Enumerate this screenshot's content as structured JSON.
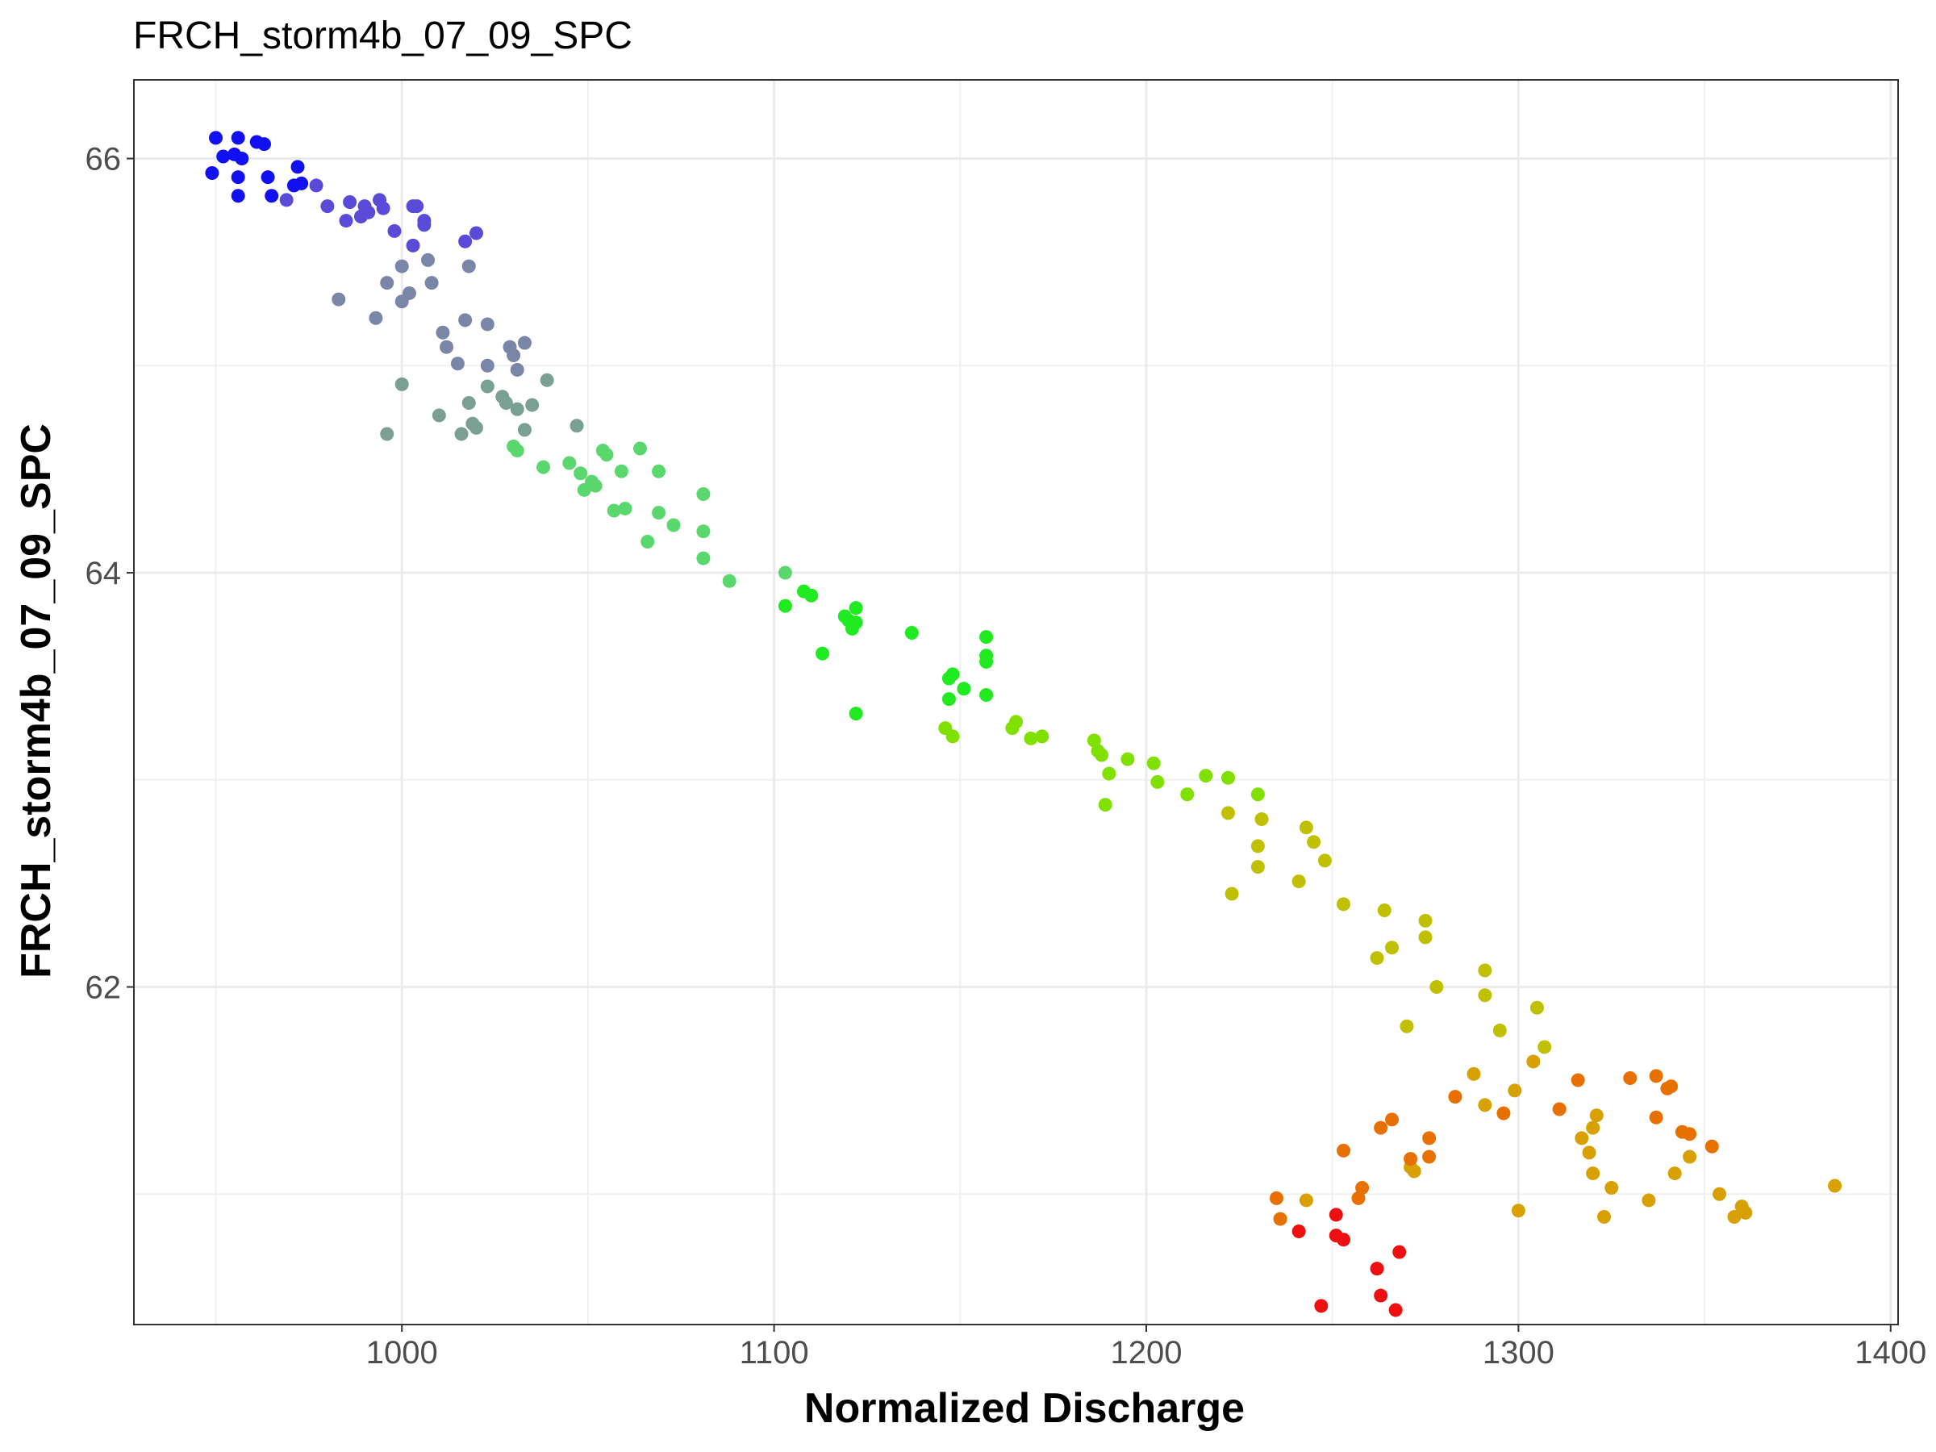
{
  "chart_data": {
    "type": "scatter",
    "title": "FRCH_storm4b_07_09_SPC",
    "xlabel": "Normalized Discharge",
    "ylabel": "FRCH_storm4b_07_09_SPC",
    "xlim": [
      928,
      1402
    ],
    "ylim": [
      60.37,
      66.38
    ],
    "x_ticks": [
      1000,
      1100,
      1200,
      1300,
      1400
    ],
    "y_ticks": [
      62,
      64,
      66
    ],
    "x_minor_gridlines": [
      950,
      1050,
      1150,
      1250,
      1350
    ],
    "y_minor_gridlines": [
      61,
      63,
      65
    ],
    "grid": true,
    "legend": "none",
    "color_note": "points colored along a gradient in time order: blue, grey, green, yellow, orange, red",
    "colors": {
      "blue": "#1010f0",
      "purple": "#5a4ad8",
      "slate": "#7a86a8",
      "grey_green": "#7aa094",
      "green_light": "#5ad86e",
      "green": "#20ea20",
      "lime": "#80e000",
      "yellow": "#c0c000",
      "gold": "#d8a000",
      "orange": "#e87000",
      "red": "#ee1010"
    },
    "points": [
      {
        "x": 950,
        "y": 66.1,
        "c": "blue"
      },
      {
        "x": 956,
        "y": 66.1,
        "c": "blue"
      },
      {
        "x": 961,
        "y": 66.08,
        "c": "blue"
      },
      {
        "x": 963,
        "y": 66.07,
        "c": "blue"
      },
      {
        "x": 952,
        "y": 66.01,
        "c": "blue"
      },
      {
        "x": 957,
        "y": 66.0,
        "c": "blue"
      },
      {
        "x": 955,
        "y": 66.02,
        "c": "blue"
      },
      {
        "x": 949,
        "y": 65.93,
        "c": "blue"
      },
      {
        "x": 956,
        "y": 65.91,
        "c": "blue"
      },
      {
        "x": 964,
        "y": 65.91,
        "c": "blue"
      },
      {
        "x": 972,
        "y": 65.96,
        "c": "blue"
      },
      {
        "x": 956,
        "y": 65.82,
        "c": "blue"
      },
      {
        "x": 965,
        "y": 65.82,
        "c": "blue"
      },
      {
        "x": 971,
        "y": 65.87,
        "c": "blue"
      },
      {
        "x": 973,
        "y": 65.88,
        "c": "blue"
      },
      {
        "x": 977,
        "y": 65.87,
        "c": "purple"
      },
      {
        "x": 969,
        "y": 65.8,
        "c": "purple"
      },
      {
        "x": 980,
        "y": 65.77,
        "c": "purple"
      },
      {
        "x": 986,
        "y": 65.79,
        "c": "purple"
      },
      {
        "x": 990,
        "y": 65.77,
        "c": "purple"
      },
      {
        "x": 994,
        "y": 65.8,
        "c": "purple"
      },
      {
        "x": 995,
        "y": 65.76,
        "c": "purple"
      },
      {
        "x": 985,
        "y": 65.7,
        "c": "purple"
      },
      {
        "x": 989,
        "y": 65.72,
        "c": "purple"
      },
      {
        "x": 991,
        "y": 65.74,
        "c": "purple"
      },
      {
        "x": 1003,
        "y": 65.77,
        "c": "purple"
      },
      {
        "x": 1004,
        "y": 65.77,
        "c": "purple"
      },
      {
        "x": 1006,
        "y": 65.7,
        "c": "purple"
      },
      {
        "x": 1006,
        "y": 65.68,
        "c": "purple"
      },
      {
        "x": 998,
        "y": 65.65,
        "c": "purple"
      },
      {
        "x": 1020,
        "y": 65.64,
        "c": "purple"
      },
      {
        "x": 1017,
        "y": 65.6,
        "c": "purple"
      },
      {
        "x": 1003,
        "y": 65.58,
        "c": "purple"
      },
      {
        "x": 1007,
        "y": 65.51,
        "c": "slate"
      },
      {
        "x": 1018,
        "y": 65.48,
        "c": "slate"
      },
      {
        "x": 1000,
        "y": 65.48,
        "c": "slate"
      },
      {
        "x": 996,
        "y": 65.4,
        "c": "slate"
      },
      {
        "x": 1008,
        "y": 65.4,
        "c": "slate"
      },
      {
        "x": 983,
        "y": 65.32,
        "c": "slate"
      },
      {
        "x": 1002,
        "y": 65.35,
        "c": "slate"
      },
      {
        "x": 1000,
        "y": 65.31,
        "c": "slate"
      },
      {
        "x": 993,
        "y": 65.23,
        "c": "slate"
      },
      {
        "x": 1017,
        "y": 65.22,
        "c": "slate"
      },
      {
        "x": 1023,
        "y": 65.2,
        "c": "slate"
      },
      {
        "x": 1011,
        "y": 65.16,
        "c": "slate"
      },
      {
        "x": 1029,
        "y": 65.09,
        "c": "slate"
      },
      {
        "x": 1033,
        "y": 65.11,
        "c": "slate"
      },
      {
        "x": 1012,
        "y": 65.09,
        "c": "slate"
      },
      {
        "x": 1030,
        "y": 65.05,
        "c": "slate"
      },
      {
        "x": 1015,
        "y": 65.01,
        "c": "slate"
      },
      {
        "x": 1023,
        "y": 65.0,
        "c": "slate"
      },
      {
        "x": 1031,
        "y": 64.98,
        "c": "slate"
      },
      {
        "x": 1000,
        "y": 64.91,
        "c": "grey_green"
      },
      {
        "x": 1023,
        "y": 64.9,
        "c": "grey_green"
      },
      {
        "x": 1039,
        "y": 64.93,
        "c": "grey_green"
      },
      {
        "x": 1027,
        "y": 64.85,
        "c": "grey_green"
      },
      {
        "x": 1028,
        "y": 64.82,
        "c": "grey_green"
      },
      {
        "x": 1035,
        "y": 64.81,
        "c": "grey_green"
      },
      {
        "x": 1018,
        "y": 64.82,
        "c": "grey_green"
      },
      {
        "x": 1031,
        "y": 64.79,
        "c": "grey_green"
      },
      {
        "x": 1010,
        "y": 64.76,
        "c": "grey_green"
      },
      {
        "x": 1019,
        "y": 64.72,
        "c": "grey_green"
      },
      {
        "x": 1020,
        "y": 64.7,
        "c": "grey_green"
      },
      {
        "x": 1047,
        "y": 64.71,
        "c": "grey_green"
      },
      {
        "x": 1016,
        "y": 64.67,
        "c": "grey_green"
      },
      {
        "x": 996,
        "y": 64.67,
        "c": "grey_green"
      },
      {
        "x": 1033,
        "y": 64.69,
        "c": "grey_green"
      },
      {
        "x": 1030,
        "y": 64.61,
        "c": "green_light"
      },
      {
        "x": 1031,
        "y": 64.59,
        "c": "green_light"
      },
      {
        "x": 1054,
        "y": 64.59,
        "c": "green_light"
      },
      {
        "x": 1055,
        "y": 64.57,
        "c": "green_light"
      },
      {
        "x": 1064,
        "y": 64.6,
        "c": "green_light"
      },
      {
        "x": 1045,
        "y": 64.53,
        "c": "green_light"
      },
      {
        "x": 1038,
        "y": 64.51,
        "c": "green_light"
      },
      {
        "x": 1048,
        "y": 64.48,
        "c": "green_light"
      },
      {
        "x": 1059,
        "y": 64.49,
        "c": "green_light"
      },
      {
        "x": 1069,
        "y": 64.49,
        "c": "green_light"
      },
      {
        "x": 1051,
        "y": 64.44,
        "c": "green_light"
      },
      {
        "x": 1052,
        "y": 64.42,
        "c": "green_light"
      },
      {
        "x": 1049,
        "y": 64.4,
        "c": "green_light"
      },
      {
        "x": 1081,
        "y": 64.38,
        "c": "green_light"
      },
      {
        "x": 1057,
        "y": 64.3,
        "c": "green_light"
      },
      {
        "x": 1060,
        "y": 64.31,
        "c": "green_light"
      },
      {
        "x": 1069,
        "y": 64.29,
        "c": "green_light"
      },
      {
        "x": 1073,
        "y": 64.23,
        "c": "green_light"
      },
      {
        "x": 1081,
        "y": 64.2,
        "c": "green_light"
      },
      {
        "x": 1066,
        "y": 64.15,
        "c": "green_light"
      },
      {
        "x": 1081,
        "y": 64.07,
        "c": "green_light"
      },
      {
        "x": 1103,
        "y": 64.0,
        "c": "green_light"
      },
      {
        "x": 1088,
        "y": 63.96,
        "c": "green_light"
      },
      {
        "x": 1108,
        "y": 63.91,
        "c": "green"
      },
      {
        "x": 1110,
        "y": 63.89,
        "c": "green"
      },
      {
        "x": 1103,
        "y": 63.84,
        "c": "green"
      },
      {
        "x": 1122,
        "y": 63.83,
        "c": "green"
      },
      {
        "x": 1119,
        "y": 63.79,
        "c": "green"
      },
      {
        "x": 1120,
        "y": 63.77,
        "c": "green"
      },
      {
        "x": 1122,
        "y": 63.76,
        "c": "green"
      },
      {
        "x": 1121,
        "y": 63.73,
        "c": "green"
      },
      {
        "x": 1137,
        "y": 63.71,
        "c": "green"
      },
      {
        "x": 1157,
        "y": 63.69,
        "c": "green"
      },
      {
        "x": 1113,
        "y": 63.61,
        "c": "green"
      },
      {
        "x": 1157,
        "y": 63.6,
        "c": "green"
      },
      {
        "x": 1157,
        "y": 63.57,
        "c": "green"
      },
      {
        "x": 1148,
        "y": 63.51,
        "c": "green"
      },
      {
        "x": 1147,
        "y": 63.49,
        "c": "green"
      },
      {
        "x": 1151,
        "y": 63.44,
        "c": "green"
      },
      {
        "x": 1147,
        "y": 63.39,
        "c": "green"
      },
      {
        "x": 1157,
        "y": 63.41,
        "c": "green"
      },
      {
        "x": 1122,
        "y": 63.32,
        "c": "green"
      },
      {
        "x": 1165,
        "y": 63.28,
        "c": "lime"
      },
      {
        "x": 1164,
        "y": 63.25,
        "c": "lime"
      },
      {
        "x": 1146,
        "y": 63.25,
        "c": "lime"
      },
      {
        "x": 1148,
        "y": 63.21,
        "c": "lime"
      },
      {
        "x": 1172,
        "y": 63.21,
        "c": "lime"
      },
      {
        "x": 1169,
        "y": 63.2,
        "c": "lime"
      },
      {
        "x": 1186,
        "y": 63.19,
        "c": "lime"
      },
      {
        "x": 1187,
        "y": 63.14,
        "c": "lime"
      },
      {
        "x": 1188,
        "y": 63.12,
        "c": "lime"
      },
      {
        "x": 1195,
        "y": 63.1,
        "c": "lime"
      },
      {
        "x": 1202,
        "y": 63.08,
        "c": "lime"
      },
      {
        "x": 1190,
        "y": 63.03,
        "c": "lime"
      },
      {
        "x": 1216,
        "y": 63.02,
        "c": "lime"
      },
      {
        "x": 1222,
        "y": 63.01,
        "c": "lime"
      },
      {
        "x": 1203,
        "y": 62.99,
        "c": "lime"
      },
      {
        "x": 1211,
        "y": 62.93,
        "c": "lime"
      },
      {
        "x": 1230,
        "y": 62.93,
        "c": "lime"
      },
      {
        "x": 1189,
        "y": 62.88,
        "c": "lime"
      },
      {
        "x": 1222,
        "y": 62.84,
        "c": "yellow"
      },
      {
        "x": 1231,
        "y": 62.81,
        "c": "yellow"
      },
      {
        "x": 1243,
        "y": 62.77,
        "c": "yellow"
      },
      {
        "x": 1245,
        "y": 62.7,
        "c": "yellow"
      },
      {
        "x": 1230,
        "y": 62.68,
        "c": "yellow"
      },
      {
        "x": 1248,
        "y": 62.61,
        "c": "yellow"
      },
      {
        "x": 1230,
        "y": 62.58,
        "c": "yellow"
      },
      {
        "x": 1241,
        "y": 62.51,
        "c": "yellow"
      },
      {
        "x": 1223,
        "y": 62.45,
        "c": "yellow"
      },
      {
        "x": 1253,
        "y": 62.4,
        "c": "yellow"
      },
      {
        "x": 1264,
        "y": 62.37,
        "c": "yellow"
      },
      {
        "x": 1275,
        "y": 62.32,
        "c": "yellow"
      },
      {
        "x": 1275,
        "y": 62.24,
        "c": "yellow"
      },
      {
        "x": 1266,
        "y": 62.19,
        "c": "yellow"
      },
      {
        "x": 1262,
        "y": 62.14,
        "c": "yellow"
      },
      {
        "x": 1291,
        "y": 62.08,
        "c": "yellow"
      },
      {
        "x": 1278,
        "y": 62.0,
        "c": "yellow"
      },
      {
        "x": 1291,
        "y": 61.96,
        "c": "yellow"
      },
      {
        "x": 1305,
        "y": 61.9,
        "c": "yellow"
      },
      {
        "x": 1270,
        "y": 61.81,
        "c": "yellow"
      },
      {
        "x": 1295,
        "y": 61.79,
        "c": "yellow"
      },
      {
        "x": 1307,
        "y": 61.71,
        "c": "yellow"
      },
      {
        "x": 1304,
        "y": 61.64,
        "c": "gold"
      },
      {
        "x": 1288,
        "y": 61.58,
        "c": "gold"
      },
      {
        "x": 1299,
        "y": 61.5,
        "c": "gold"
      },
      {
        "x": 1291,
        "y": 61.43,
        "c": "gold"
      },
      {
        "x": 1321,
        "y": 61.38,
        "c": "gold"
      },
      {
        "x": 1320,
        "y": 61.32,
        "c": "gold"
      },
      {
        "x": 1317,
        "y": 61.27,
        "c": "gold"
      },
      {
        "x": 1319,
        "y": 61.2,
        "c": "gold"
      },
      {
        "x": 1271,
        "y": 61.13,
        "c": "gold"
      },
      {
        "x": 1272,
        "y": 61.11,
        "c": "gold"
      },
      {
        "x": 1320,
        "y": 61.1,
        "c": "gold"
      },
      {
        "x": 1325,
        "y": 61.03,
        "c": "gold"
      },
      {
        "x": 1335,
        "y": 60.97,
        "c": "gold"
      },
      {
        "x": 1243,
        "y": 60.97,
        "c": "gold"
      },
      {
        "x": 1300,
        "y": 60.92,
        "c": "gold"
      },
      {
        "x": 1323,
        "y": 60.89,
        "c": "gold"
      },
      {
        "x": 1354,
        "y": 61.0,
        "c": "gold"
      },
      {
        "x": 1360,
        "y": 60.94,
        "c": "gold"
      },
      {
        "x": 1361,
        "y": 60.91,
        "c": "gold"
      },
      {
        "x": 1358,
        "y": 60.89,
        "c": "gold"
      },
      {
        "x": 1385,
        "y": 61.04,
        "c": "gold"
      },
      {
        "x": 1346,
        "y": 61.18,
        "c": "gold"
      },
      {
        "x": 1342,
        "y": 61.1,
        "c": "gold"
      },
      {
        "x": 1352,
        "y": 61.23,
        "c": "orange"
      },
      {
        "x": 1346,
        "y": 61.29,
        "c": "orange"
      },
      {
        "x": 1344,
        "y": 61.3,
        "c": "orange"
      },
      {
        "x": 1337,
        "y": 61.37,
        "c": "orange"
      },
      {
        "x": 1340,
        "y": 61.51,
        "c": "orange"
      },
      {
        "x": 1341,
        "y": 61.52,
        "c": "orange"
      },
      {
        "x": 1337,
        "y": 61.57,
        "c": "orange"
      },
      {
        "x": 1330,
        "y": 61.56,
        "c": "orange"
      },
      {
        "x": 1316,
        "y": 61.55,
        "c": "orange"
      },
      {
        "x": 1311,
        "y": 61.41,
        "c": "orange"
      },
      {
        "x": 1296,
        "y": 61.39,
        "c": "orange"
      },
      {
        "x": 1283,
        "y": 61.47,
        "c": "orange"
      },
      {
        "x": 1266,
        "y": 61.36,
        "c": "orange"
      },
      {
        "x": 1263,
        "y": 61.32,
        "c": "orange"
      },
      {
        "x": 1276,
        "y": 61.27,
        "c": "orange"
      },
      {
        "x": 1253,
        "y": 61.21,
        "c": "orange"
      },
      {
        "x": 1271,
        "y": 61.17,
        "c": "orange"
      },
      {
        "x": 1276,
        "y": 61.18,
        "c": "orange"
      },
      {
        "x": 1258,
        "y": 61.03,
        "c": "orange"
      },
      {
        "x": 1257,
        "y": 60.98,
        "c": "orange"
      },
      {
        "x": 1235,
        "y": 60.98,
        "c": "orange"
      },
      {
        "x": 1236,
        "y": 60.88,
        "c": "orange"
      },
      {
        "x": 1251,
        "y": 60.9,
        "c": "red"
      },
      {
        "x": 1241,
        "y": 60.82,
        "c": "red"
      },
      {
        "x": 1251,
        "y": 60.8,
        "c": "red"
      },
      {
        "x": 1253,
        "y": 60.78,
        "c": "red"
      },
      {
        "x": 1268,
        "y": 60.72,
        "c": "red"
      },
      {
        "x": 1262,
        "y": 60.64,
        "c": "red"
      },
      {
        "x": 1263,
        "y": 60.51,
        "c": "red"
      },
      {
        "x": 1247,
        "y": 60.46,
        "c": "red"
      },
      {
        "x": 1267,
        "y": 60.44,
        "c": "red"
      }
    ]
  }
}
